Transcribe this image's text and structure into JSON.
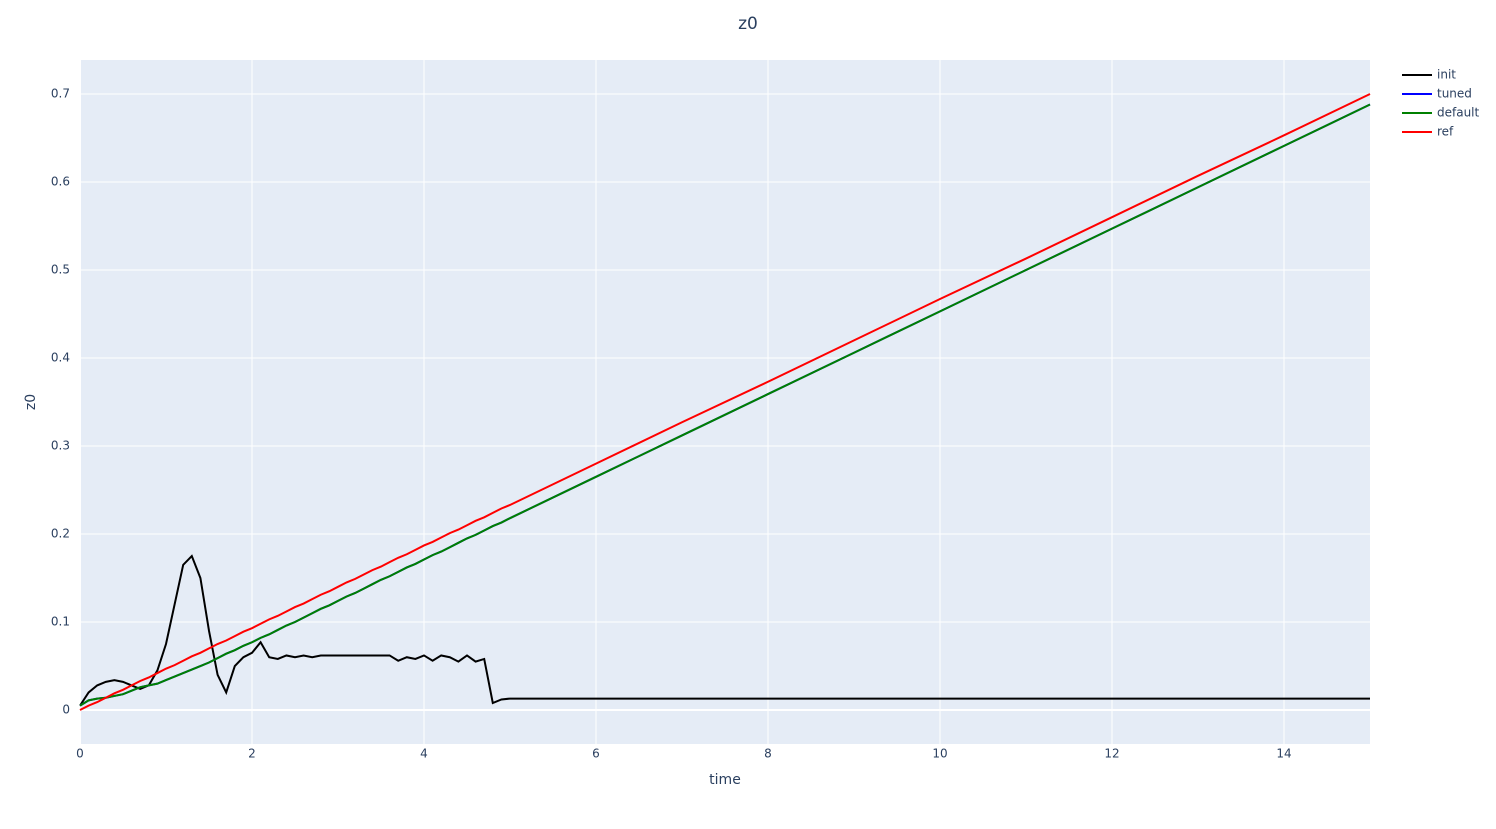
{
  "chart_data": {
    "type": "line",
    "title": "z0",
    "x_label": "time",
    "y_label": "z0",
    "x": [
      0,
      0.1,
      0.2,
      0.3,
      0.4,
      0.5,
      0.6,
      0.7,
      0.8,
      0.9,
      1.0,
      1.1,
      1.2,
      1.3,
      1.4,
      1.5,
      1.6,
      1.7,
      1.8,
      1.9,
      2.0,
      2.1,
      2.2,
      2.3,
      2.4,
      2.5,
      2.6,
      2.7,
      2.8,
      2.9,
      3.0,
      3.1,
      3.2,
      3.3,
      3.4,
      3.5,
      3.6,
      3.7,
      3.8,
      3.9,
      4.0,
      4.1,
      4.2,
      4.3,
      4.4,
      4.5,
      4.6,
      4.7,
      4.8,
      4.9,
      5.0,
      6,
      7,
      8,
      9,
      10,
      11,
      12,
      13,
      14,
      15
    ],
    "series": [
      {
        "name": "init",
        "color": "#000000",
        "values": [
          0.005,
          0.02,
          0.028,
          0.032,
          0.034,
          0.032,
          0.028,
          0.024,
          0.028,
          0.045,
          0.075,
          0.12,
          0.165,
          0.175,
          0.15,
          0.09,
          0.04,
          0.02,
          0.05,
          0.06,
          0.065,
          0.077,
          0.06,
          0.058,
          0.062,
          0.06,
          0.062,
          0.06,
          0.062,
          0.062,
          0.062,
          0.062,
          0.062,
          0.062,
          0.062,
          0.062,
          0.062,
          0.056,
          0.06,
          0.058,
          0.062,
          0.056,
          0.062,
          0.06,
          0.055,
          0.062,
          0.055,
          0.058,
          0.008,
          0.012,
          0.013,
          0.013,
          0.013,
          0.013,
          0.013,
          0.013,
          0.013,
          0.013,
          0.013,
          0.013,
          0.013
        ]
      },
      {
        "name": "tuned",
        "color": "#0000ff",
        "values": [
          0.005,
          0.011,
          0.013,
          0.014,
          0.016,
          0.018,
          0.022,
          0.026,
          0.028,
          0.03,
          0.034,
          0.038,
          0.042,
          0.046,
          0.05,
          0.054,
          0.059,
          0.064,
          0.068,
          0.073,
          0.077,
          0.082,
          0.086,
          0.091,
          0.096,
          0.1,
          0.105,
          0.11,
          0.115,
          0.119,
          0.124,
          0.129,
          0.133,
          0.138,
          0.143,
          0.148,
          0.152,
          0.157,
          0.162,
          0.166,
          0.171,
          0.176,
          0.18,
          0.185,
          0.19,
          0.195,
          0.199,
          0.204,
          0.209,
          0.213,
          0.218,
          0.265,
          0.312,
          0.359,
          0.406,
          0.453,
          0.5,
          0.547,
          0.594,
          0.641,
          0.688
        ]
      },
      {
        "name": "default",
        "color": "#008000",
        "values": [
          0.005,
          0.011,
          0.013,
          0.014,
          0.016,
          0.018,
          0.022,
          0.026,
          0.028,
          0.03,
          0.034,
          0.038,
          0.042,
          0.046,
          0.05,
          0.054,
          0.059,
          0.064,
          0.068,
          0.073,
          0.077,
          0.082,
          0.086,
          0.091,
          0.096,
          0.1,
          0.105,
          0.11,
          0.115,
          0.119,
          0.124,
          0.129,
          0.133,
          0.138,
          0.143,
          0.148,
          0.152,
          0.157,
          0.162,
          0.166,
          0.171,
          0.176,
          0.18,
          0.185,
          0.19,
          0.195,
          0.199,
          0.204,
          0.209,
          0.213,
          0.218,
          0.265,
          0.312,
          0.359,
          0.406,
          0.453,
          0.5,
          0.547,
          0.594,
          0.641,
          0.688
        ]
      },
      {
        "name": "ref",
        "color": "#ff0000",
        "values": [
          0,
          0.005,
          0.009,
          0.014,
          0.019,
          0.023,
          0.028,
          0.033,
          0.037,
          0.042,
          0.047,
          0.051,
          0.056,
          0.061,
          0.065,
          0.07,
          0.075,
          0.079,
          0.084,
          0.089,
          0.093,
          0.098,
          0.103,
          0.107,
          0.112,
          0.117,
          0.121,
          0.126,
          0.131,
          0.135,
          0.14,
          0.145,
          0.149,
          0.154,
          0.159,
          0.163,
          0.168,
          0.173,
          0.177,
          0.182,
          0.187,
          0.191,
          0.196,
          0.201,
          0.205,
          0.21,
          0.215,
          0.219,
          0.224,
          0.229,
          0.233,
          0.28,
          0.327,
          0.373,
          0.42,
          0.467,
          0.513,
          0.56,
          0.607,
          0.653,
          0.7
        ]
      }
    ],
    "xlim": [
      0,
      15
    ],
    "xticks": [
      0,
      2,
      4,
      6,
      8,
      10,
      12,
      14
    ],
    "ylim": [
      -0.0386,
      0.7386
    ],
    "yticks": [
      0,
      0.1,
      0.2,
      0.3,
      0.4,
      0.5,
      0.6,
      0.7
    ],
    "grid": true,
    "legend": "top-right"
  }
}
